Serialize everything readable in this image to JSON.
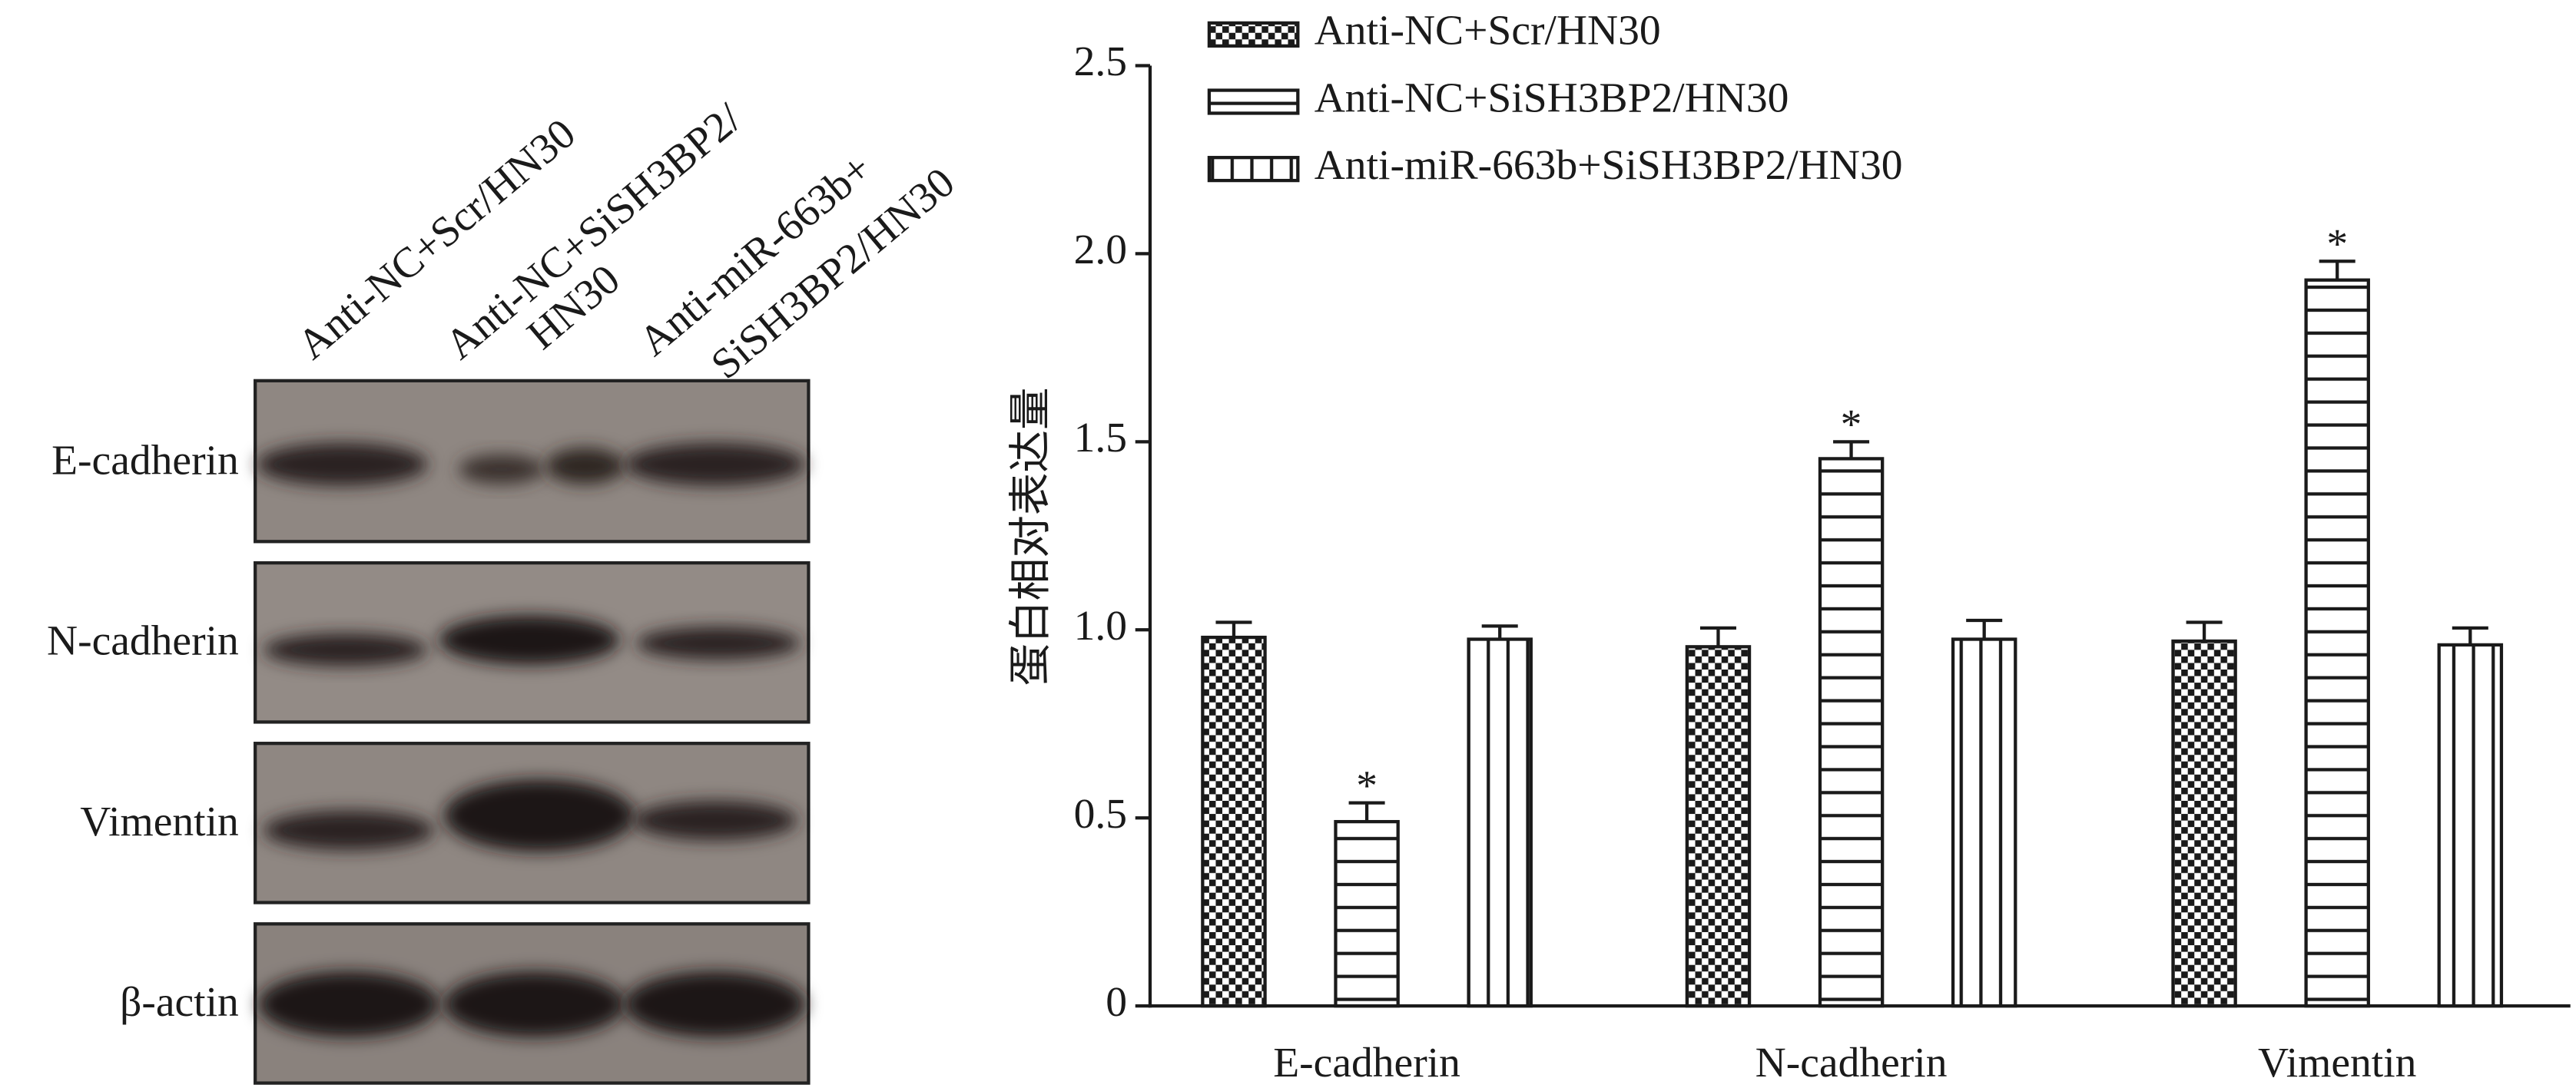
{
  "blot": {
    "lanes": [
      [
        "Anti-NC+Scr/HN30"
      ],
      [
        "Anti-NC+SiSH3BP2/",
        "HN30"
      ],
      [
        "Anti-miR-663b+",
        "SiSH3BP2/HN30"
      ]
    ],
    "rows": [
      "E-cadherin",
      "N-cadherin",
      "Vimentin",
      "β-actin"
    ]
  },
  "chart_data": {
    "type": "bar",
    "y_label": "蛋白相对表达量",
    "categories": [
      "E-cadherin",
      "N-cadherin",
      "Vimentin"
    ],
    "series": [
      {
        "name": "Anti-NC+Scr/HN30",
        "pattern": "checker",
        "color": "#1a1a1a",
        "values": [
          0.98,
          0.955,
          0.97
        ],
        "errors": [
          0.04,
          0.05,
          0.05
        ]
      },
      {
        "name": "Anti-NC+SiSH3BP2/HN30",
        "pattern": "horizontal",
        "color": "#1a1a1a",
        "values": [
          0.49,
          1.455,
          1.93
        ],
        "errors": [
          0.05,
          0.045,
          0.05
        ],
        "significance": [
          "*",
          "*",
          "*"
        ]
      },
      {
        "name": "Anti-miR-663b+SiSH3BP2/HN30",
        "pattern": "vertical",
        "color": "#1a1a1a",
        "values": [
          0.975,
          0.975,
          0.96
        ],
        "errors": [
          0.035,
          0.05,
          0.045
        ]
      }
    ],
    "ylim": [
      0,
      2.5
    ],
    "yticks": [
      0,
      0.5,
      {
        "value": 1,
        "label": "1.0"
      },
      1.5,
      {
        "value": 2,
        "label": "2.0"
      },
      2.5
    ]
  }
}
